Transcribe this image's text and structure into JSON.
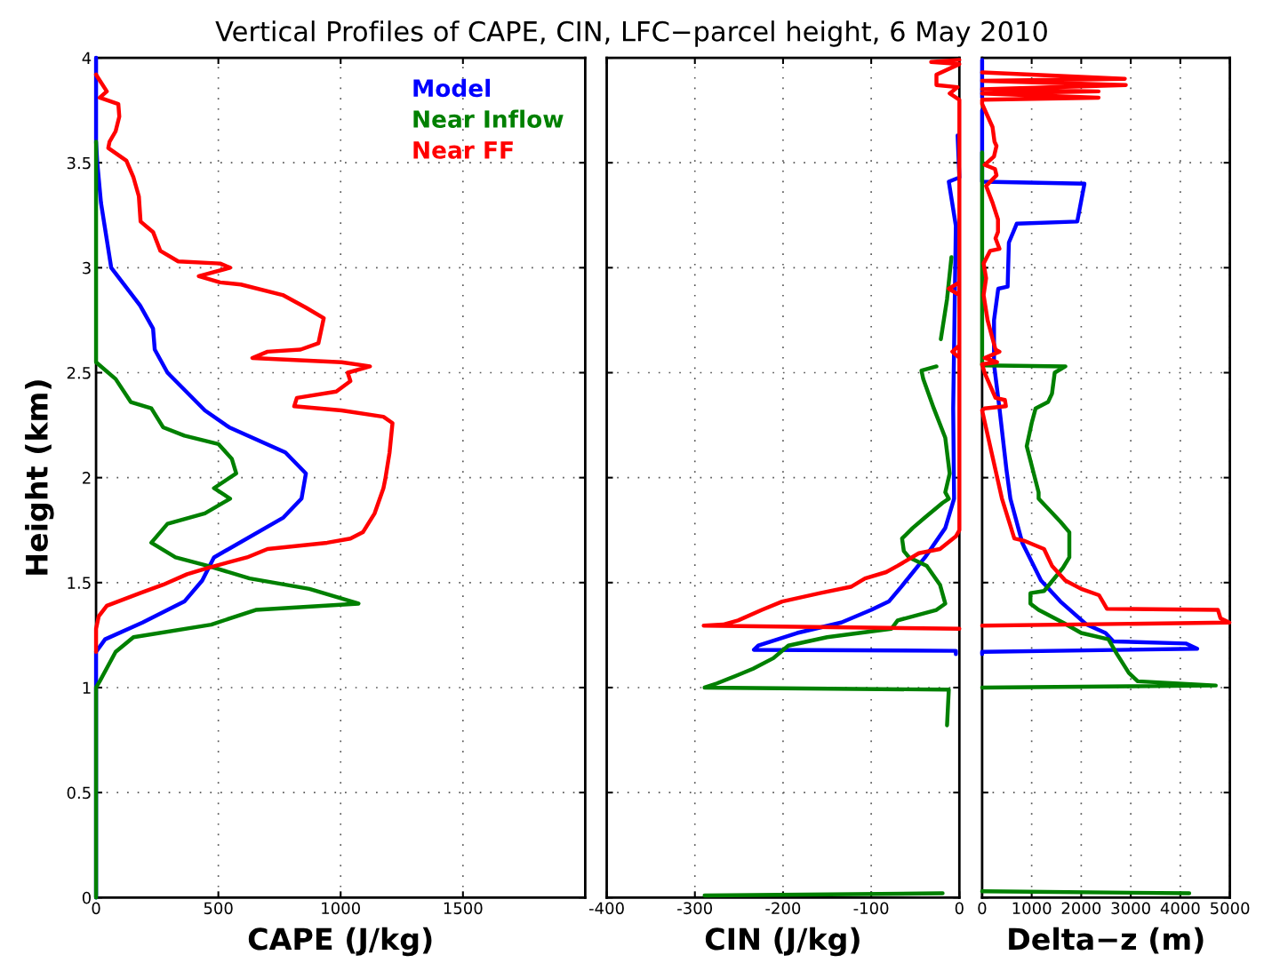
{
  "chart_data": [
    {
      "type": "line",
      "title": "Vertical Profiles of CAPE, CIN, LFC−parcel height, 6 May 2010",
      "xlabel": "CAPE (J/kg)",
      "ylabel": "Height (km)",
      "xlim": [
        0,
        2000
      ],
      "xticks": [
        0,
        500,
        1000,
        1500
      ],
      "ylim": [
        0,
        4
      ],
      "yticks": [
        0,
        0.5,
        1,
        1.5,
        2,
        2.5,
        3,
        3.5,
        4
      ],
      "grid": true,
      "legend": "top right",
      "line_style": "solid",
      "marker": "none",
      "series": [
        {
          "name": "Model",
          "color": "#0000ff",
          "x": [
            0,
            0,
            5,
            20,
            62,
            180,
            233,
            240,
            292,
            445,
            544,
            774,
            858,
            840,
            766,
            482,
            434,
            361,
            190,
            37,
            0,
            0
          ],
          "values": [
            4,
            3.6,
            3.5,
            3.31,
            3.0,
            2.82,
            2.71,
            2.61,
            2.5,
            2.32,
            2.24,
            2.12,
            2.02,
            1.9,
            1.81,
            1.62,
            1.51,
            1.41,
            1.31,
            1.23,
            1.17,
            0
          ]
        },
        {
          "name": "Near Inflow",
          "color": "#008000",
          "x": [
            0,
            0,
            80,
            142,
            226,
            274,
            361,
            500,
            555,
            573,
            482,
            548,
            445,
            292,
            226,
            325,
            456,
            628,
            872,
            1073,
            653,
            471,
            153,
            80,
            15,
            0,
            0
          ],
          "values": [
            3.6,
            2.55,
            2.47,
            2.36,
            2.33,
            2.24,
            2.2,
            2.16,
            2.09,
            2.02,
            1.95,
            1.9,
            1.83,
            1.78,
            1.69,
            1.62,
            1.58,
            1.52,
            1.47,
            1.4,
            1.37,
            1.3,
            1.24,
            1.17,
            1.03,
            1.0,
            0
          ]
        },
        {
          "name": "Near FF",
          "color": "#ff0000",
          "x": [
            0,
            5,
            44,
            15,
            91,
            95,
            80,
            55,
            50,
            124,
            153,
            175,
            182,
            233,
            263,
            336,
            507,
            548,
            420,
            507,
            592,
            763,
            858,
            931,
            909,
            836,
            701,
            639,
            1004,
            1120,
            1029,
            1040,
            982,
            821,
            810,
            1004,
            1175,
            1212,
            1200,
            1182,
            1175,
            1139,
            1091,
            1040,
            945,
            701,
            617,
            456,
            372,
            274,
            180,
            44,
            11,
            0,
            0
          ],
          "values": [
            3.92,
            3.91,
            3.84,
            3.81,
            3.78,
            3.72,
            3.65,
            3.6,
            3.57,
            3.51,
            3.43,
            3.34,
            3.22,
            3.17,
            3.08,
            3.03,
            3.02,
            3.0,
            2.96,
            2.93,
            2.92,
            2.87,
            2.81,
            2.76,
            2.64,
            2.61,
            2.6,
            2.57,
            2.55,
            2.53,
            2.5,
            2.46,
            2.41,
            2.38,
            2.34,
            2.32,
            2.29,
            2.26,
            2.12,
            1.99,
            1.95,
            1.83,
            1.74,
            1.71,
            1.69,
            1.66,
            1.62,
            1.57,
            1.54,
            1.49,
            1.45,
            1.39,
            1.34,
            1.28,
            1.17
          ]
        }
      ]
    },
    {
      "type": "line",
      "xlabel": "CIN (J/kg)",
      "xlim": [
        -400,
        0
      ],
      "xticks": [
        -400,
        -300,
        -200,
        -100,
        0
      ],
      "ylim": [
        0,
        4
      ],
      "yticks": [
        0,
        0.5,
        1,
        1.5,
        2,
        2.5,
        3,
        3.5,
        4
      ],
      "tick_labels": "x",
      "grid": true,
      "line_style": "solid",
      "marker": "none",
      "series": [
        {
          "color": "#0000ff",
          "x": [
            -2,
            0,
            -12,
            -4,
            -7,
            -6,
            -16,
            -39,
            -66,
            -80,
            -100,
            -134,
            -184,
            -228,
            -233,
            -4,
            -4
          ],
          "values": [
            3.63,
            3.43,
            3.41,
            3.2,
            2.33,
            1.9,
            1.76,
            1.62,
            1.48,
            1.41,
            1.37,
            1.31,
            1.26,
            1.2,
            1.18,
            1.175,
            1.16
          ]
        },
        {
          "color": "#008000",
          "x": [
            -289,
            -19,
            null,
            -14,
            -12,
            -289,
            -275,
            -251,
            -234,
            -211,
            -194,
            -150,
            -77,
            -70,
            -26,
            -16,
            -22,
            -37,
            -57,
            -63,
            -65,
            -53,
            -39,
            -19,
            -12,
            -16,
            -11,
            -16,
            -29,
            -41,
            -43,
            -26,
            null,
            -21,
            -14,
            -9
          ],
          "values": [
            0.01,
            0.02,
            null,
            0.82,
            0.99,
            1.0,
            1.02,
            1.06,
            1.09,
            1.14,
            1.2,
            1.24,
            1.28,
            1.32,
            1.37,
            1.4,
            1.49,
            1.58,
            1.62,
            1.65,
            1.71,
            1.76,
            1.81,
            1.88,
            1.9,
            1.93,
            2.02,
            2.19,
            2.33,
            2.47,
            2.51,
            2.53,
            null,
            2.66,
            2.85,
            3.05
          ]
        },
        {
          "color": "#ff0000",
          "x": [
            0,
            -32,
            0,
            -26,
            -26,
            -2,
            -11,
            0,
            0,
            -8,
            0,
            0,
            -12,
            0,
            0,
            -4,
            -22,
            -46,
            -70,
            -83,
            -107,
            -123,
            -158,
            -201,
            -224,
            -251,
            -268,
            -290,
            0
          ],
          "values": [
            3.99,
            3.98,
            3.97,
            3.92,
            3.87,
            3.86,
            3.83,
            3.8,
            2.63,
            2.6,
            2.57,
            2.93,
            2.9,
            2.87,
            1.75,
            1.72,
            1.66,
            1.64,
            1.58,
            1.55,
            1.52,
            1.48,
            1.45,
            1.41,
            1.37,
            1.32,
            1.3,
            1.295,
            1.28
          ]
        }
      ]
    },
    {
      "type": "line",
      "xlabel": "Delta−z (m)",
      "xlim": [
        0,
        5000
      ],
      "xticks": [
        0,
        1000,
        2000,
        3000,
        4000,
        5000
      ],
      "ylim": [
        0,
        4
      ],
      "yticks": [
        0,
        0.5,
        1,
        1.5,
        2,
        2.5,
        3,
        3.5,
        4
      ],
      "tick_labels": "x",
      "grid": true,
      "line_style": "solid",
      "marker": "none",
      "series": [
        {
          "color": "#0000ff",
          "x": [
            0,
            0,
            null,
            0,
            0,
            2065,
            1920,
            700,
            540,
            515,
            325,
            240,
            240,
            350,
            490,
            570,
            810,
            1190,
            1580,
            2110,
            2490,
            2650,
            4110,
            4340,
            0,
            0
          ],
          "values": [
            3.99,
            3.81,
            null,
            3.75,
            3.41,
            3.4,
            3.22,
            3.21,
            3.12,
            2.91,
            2.9,
            2.75,
            2.54,
            2.33,
            2.04,
            1.9,
            1.69,
            1.51,
            1.41,
            1.3,
            1.26,
            1.22,
            1.21,
            1.185,
            1.17,
            1.16
          ]
        },
        {
          "color": "#008000",
          "x": [
            0,
            4180,
            null,
            0,
            4715,
            3140,
            2960,
            2720,
            2550,
            2000,
            1630,
            1140,
            975,
            975,
            1250,
            1630,
            1760,
            1760,
            1580,
            1140,
            1140,
            900,
            1000,
            1080,
            1330,
            1410,
            1465,
            1680,
            0,
            0
          ],
          "values": [
            0.03,
            0.02,
            null,
            1.0,
            1.01,
            1.03,
            1.07,
            1.16,
            1.23,
            1.26,
            1.31,
            1.37,
            1.4,
            1.45,
            1.46,
            1.57,
            1.62,
            1.74,
            1.79,
            1.9,
            1.93,
            2.15,
            2.26,
            2.33,
            2.36,
            2.4,
            2.5,
            2.53,
            2.535,
            3.55
          ]
        },
        {
          "color": "#ff0000",
          "x": [
            0,
            2880,
            0,
            2900,
            0,
            2350,
            0,
            2350,
            0,
            0,
            210,
            250,
            290,
            240,
            50,
            260,
            290,
            80,
            210,
            320,
            320,
            270,
            350,
            160,
            30,
            80,
            30,
            110,
            270,
            350,
            50,
            300,
            0,
            50,
            270,
            460,
            480,
            50,
            0,
            400,
            650,
            840,
            1250,
            1410,
            1680,
            2000,
            2360,
            2520,
            4760,
            4810,
            4990,
            0
          ],
          "values": [
            3.93,
            3.9,
            3.89,
            3.87,
            3.85,
            3.84,
            3.83,
            3.81,
            3.8,
            3.78,
            3.67,
            3.6,
            3.58,
            3.53,
            3.49,
            3.47,
            3.44,
            3.39,
            3.31,
            3.23,
            3.17,
            3.14,
            3.09,
            3.08,
            3.02,
            2.95,
            2.87,
            2.75,
            2.61,
            2.6,
            2.57,
            2.55,
            2.54,
            2.5,
            2.38,
            2.37,
            2.34,
            2.33,
            2.32,
            1.9,
            1.71,
            1.7,
            1.66,
            1.58,
            1.51,
            1.47,
            1.44,
            1.375,
            1.37,
            1.33,
            1.31,
            1.295
          ]
        }
      ]
    }
  ]
}
